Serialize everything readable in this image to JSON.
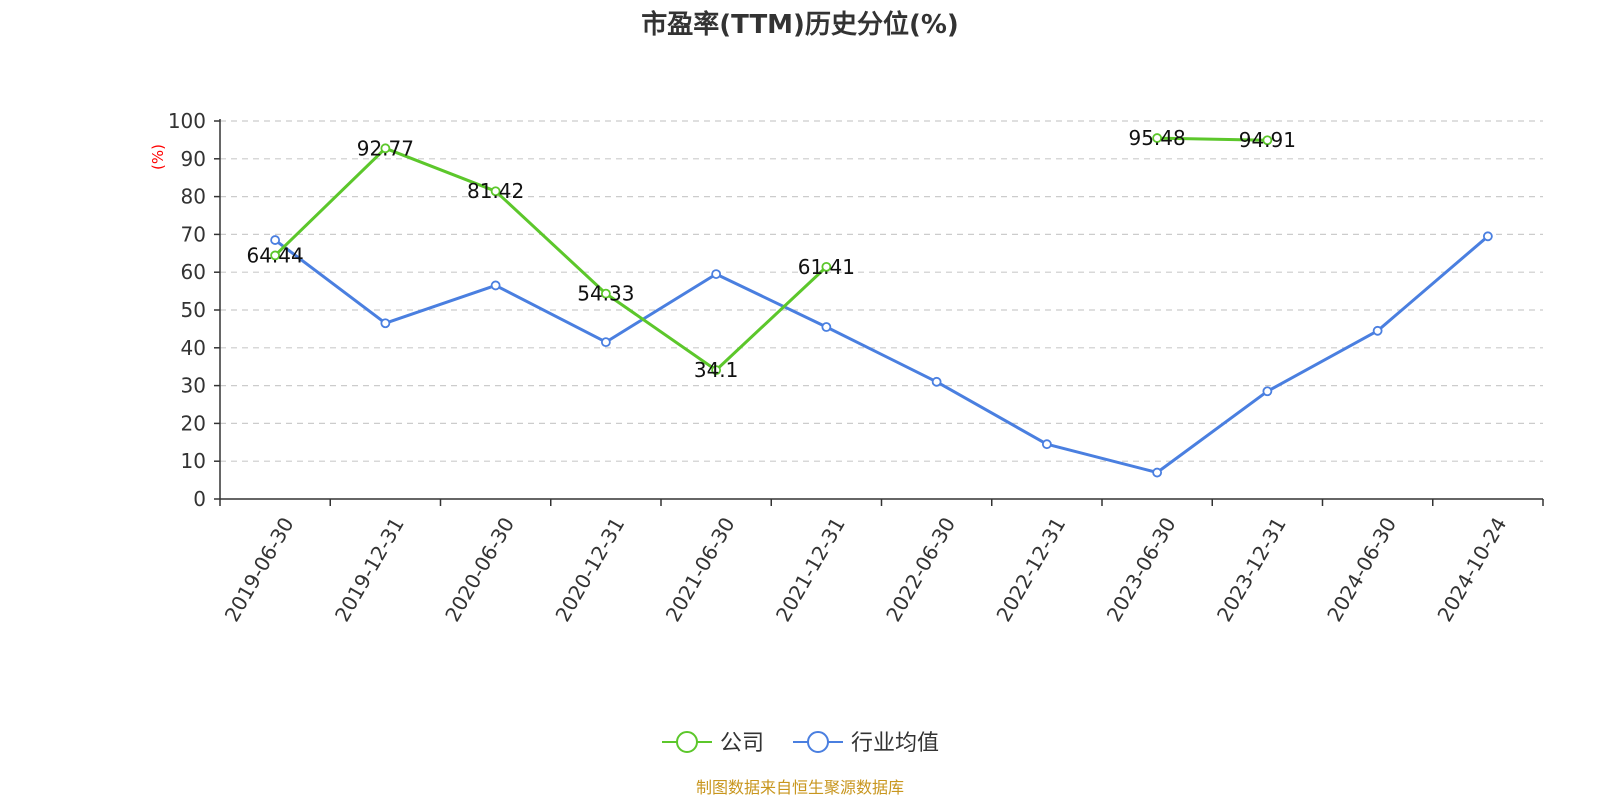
{
  "chart_data": {
    "type": "line",
    "title": "市盈率(TTM)历史分位(%)",
    "ylabel": "(%)",
    "xlabel": "",
    "ylim": [
      0,
      100
    ],
    "yticks": [
      0,
      10,
      20,
      30,
      40,
      50,
      60,
      70,
      80,
      90,
      100
    ],
    "grid": true,
    "legend_position": "bottom",
    "categories": [
      "2019-06-30",
      "2019-12-31",
      "2020-06-30",
      "2020-12-31",
      "2021-06-30",
      "2021-12-31",
      "2022-06-30",
      "2022-12-31",
      "2023-06-30",
      "2023-12-31",
      "2024-06-30",
      "2024-10-24"
    ],
    "series": [
      {
        "name": "公司",
        "color": "#5cc72b",
        "values": [
          64.44,
          92.77,
          81.42,
          54.33,
          34.1,
          61.41,
          null,
          null,
          95.48,
          94.91,
          null,
          null
        ],
        "labels": [
          "64.44",
          "92.77",
          "81.42",
          "54.33",
          "34.1",
          "61.41",
          null,
          null,
          "95.48",
          "94.91",
          null,
          null
        ]
      },
      {
        "name": "行业均值",
        "color": "#4a7fe0",
        "values": [
          68.5,
          46.5,
          56.5,
          41.5,
          59.5,
          45.5,
          31,
          14.5,
          7,
          28.5,
          44.5,
          69.5
        ]
      }
    ],
    "source": "制图数据来自恒生聚源数据库"
  }
}
